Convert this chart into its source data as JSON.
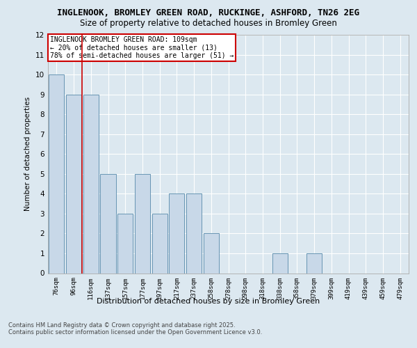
{
  "title_line1": "INGLENOOK, BROMLEY GREEN ROAD, RUCKINGE, ASHFORD, TN26 2EG",
  "title_line2": "Size of property relative to detached houses in Bromley Green",
  "xlabel": "Distribution of detached houses by size in Bromley Green",
  "ylabel": "Number of detached properties",
  "categories": [
    "76sqm",
    "96sqm",
    "116sqm",
    "137sqm",
    "157sqm",
    "177sqm",
    "197sqm",
    "217sqm",
    "237sqm",
    "258sqm",
    "278sqm",
    "298sqm",
    "318sqm",
    "338sqm",
    "358sqm",
    "379sqm",
    "399sqm",
    "419sqm",
    "439sqm",
    "459sqm",
    "479sqm"
  ],
  "values": [
    10,
    9,
    9,
    5,
    3,
    5,
    3,
    4,
    4,
    2,
    0,
    0,
    0,
    1,
    0,
    1,
    0,
    0,
    0,
    0,
    0
  ],
  "bar_color": "#c8d8e8",
  "bar_edge_color": "#5588aa",
  "ylim": [
    0,
    12
  ],
  "yticks": [
    0,
    1,
    2,
    3,
    4,
    5,
    6,
    7,
    8,
    9,
    10,
    11,
    12
  ],
  "red_line_x": 1.5,
  "annotation_text": "INGLENOOK BROMLEY GREEN ROAD: 109sqm\n← 20% of detached houses are smaller (13)\n78% of semi-detached houses are larger (51) →",
  "annotation_box_color": "#ffffff",
  "annotation_box_edge": "#cc0000",
  "background_color": "#dce8f0",
  "plot_bg_color": "#dce8f0",
  "footer_text": "Contains HM Land Registry data © Crown copyright and database right 2025.\nContains public sector information licensed under the Open Government Licence v3.0.",
  "grid_color": "#ffffff",
  "red_line_color": "#cc0000"
}
